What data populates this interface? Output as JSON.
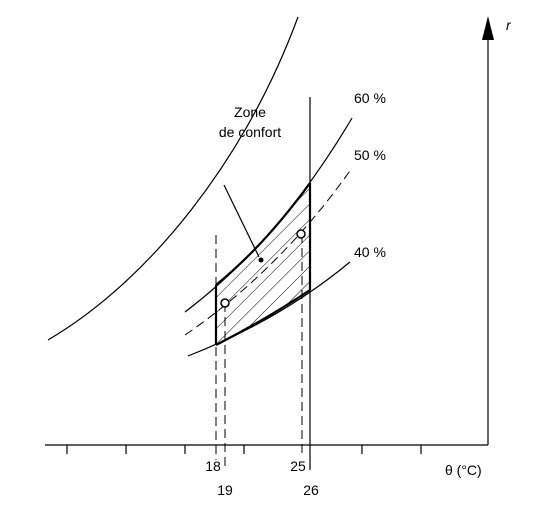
{
  "zone_label": {
    "line1": "Zone",
    "line2": "de confort"
  },
  "curve_labels": [
    "60 %",
    "50 %",
    "40 %"
  ],
  "y_axis_label": "r",
  "x_axis_label": "θ (°C)",
  "x_tick_labels": [
    18,
    19,
    25,
    26
  ]
}
